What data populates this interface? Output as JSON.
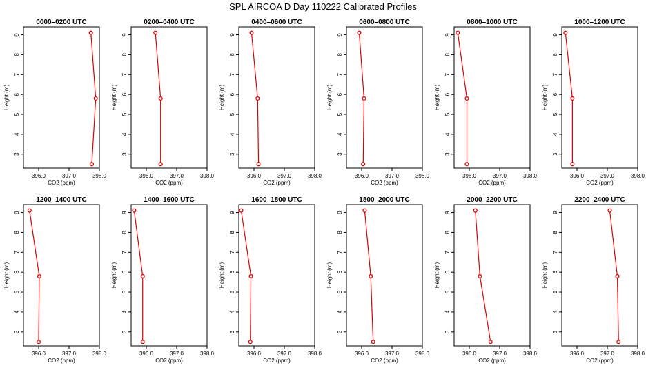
{
  "figure": {
    "title": "SPL AIRCOA D  Day 110222  Calibrated Profiles",
    "colors": {
      "series": "#dd0000",
      "axis": "#000000",
      "background": "#ffffff"
    }
  },
  "chart_data": [
    {
      "type": "line",
      "title": "0000–0200 UTC",
      "xlabel": "CO2 (ppm)",
      "ylabel": "Height (m)",
      "xlim": [
        395.5,
        398.0
      ],
      "ylim": [
        2.3,
        9.4
      ],
      "xticks": [
        "396.0",
        "397.0",
        "398.0"
      ],
      "yticks": [
        "3",
        "4",
        "5",
        "6",
        "7",
        "8",
        "9"
      ],
      "points": [
        {
          "x": 397.72,
          "y": 9.1
        },
        {
          "x": 397.88,
          "y": 5.8
        },
        {
          "x": 397.75,
          "y": 2.5
        }
      ]
    },
    {
      "type": "line",
      "title": "0200–0400 UTC",
      "xlabel": "CO2 (ppm)",
      "ylabel": "Height (m)",
      "xlim": [
        395.5,
        398.0
      ],
      "ylim": [
        2.3,
        9.4
      ],
      "xticks": [
        "396.0",
        "397.0",
        "398.0"
      ],
      "yticks": [
        "3",
        "4",
        "5",
        "6",
        "7",
        "8",
        "9"
      ],
      "points": [
        {
          "x": 396.3,
          "y": 9.1
        },
        {
          "x": 396.47,
          "y": 5.8
        },
        {
          "x": 396.47,
          "y": 2.5
        }
      ]
    },
    {
      "type": "line",
      "title": "0400–0600 UTC",
      "xlabel": "CO2 (ppm)",
      "ylabel": "Height (m)",
      "xlim": [
        395.5,
        398.0
      ],
      "ylim": [
        2.3,
        9.4
      ],
      "xticks": [
        "396.0",
        "397.0",
        "398.0"
      ],
      "yticks": [
        "3",
        "4",
        "5",
        "6",
        "7",
        "8",
        "9"
      ],
      "points": [
        {
          "x": 395.92,
          "y": 9.1
        },
        {
          "x": 396.12,
          "y": 5.8
        },
        {
          "x": 396.15,
          "y": 2.5
        }
      ]
    },
    {
      "type": "line",
      "title": "0600–0800 UTC",
      "xlabel": "CO2 (ppm)",
      "ylabel": "Height (m)",
      "xlim": [
        395.5,
        398.0
      ],
      "ylim": [
        2.3,
        9.4
      ],
      "xticks": [
        "396.0",
        "397.0",
        "398.0"
      ],
      "yticks": [
        "3",
        "4",
        "5",
        "6",
        "7",
        "8",
        "9"
      ],
      "points": [
        {
          "x": 395.92,
          "y": 9.1
        },
        {
          "x": 396.08,
          "y": 5.8
        },
        {
          "x": 396.05,
          "y": 2.5
        }
      ]
    },
    {
      "type": "line",
      "title": "0800–1000 UTC",
      "xlabel": "CO2 (ppm)",
      "ylabel": "Height (m)",
      "xlim": [
        395.5,
        398.0
      ],
      "ylim": [
        2.3,
        9.4
      ],
      "xticks": [
        "396.0",
        "397.0",
        "398.0"
      ],
      "yticks": [
        "3",
        "4",
        "5",
        "6",
        "7",
        "8",
        "9"
      ],
      "points": [
        {
          "x": 395.62,
          "y": 9.1
        },
        {
          "x": 395.92,
          "y": 5.8
        },
        {
          "x": 395.92,
          "y": 2.5
        }
      ]
    },
    {
      "type": "line",
      "title": "1000–1200 UTC",
      "xlabel": "CO2 (ppm)",
      "ylabel": "Height (m)",
      "xlim": [
        395.5,
        398.0
      ],
      "ylim": [
        2.3,
        9.4
      ],
      "xticks": [
        "396.0",
        "397.0",
        "398.0"
      ],
      "yticks": [
        "3",
        "4",
        "5",
        "6",
        "7",
        "8",
        "9"
      ],
      "points": [
        {
          "x": 395.62,
          "y": 9.1
        },
        {
          "x": 395.85,
          "y": 5.8
        },
        {
          "x": 395.85,
          "y": 2.5
        }
      ]
    },
    {
      "type": "line",
      "title": "1200–1400 UTC",
      "xlabel": "CO2 (ppm)",
      "ylabel": "Height (m)",
      "xlim": [
        395.5,
        398.0
      ],
      "ylim": [
        2.3,
        9.4
      ],
      "xticks": [
        "396.0",
        "397.0",
        "398.0"
      ],
      "yticks": [
        "3",
        "4",
        "5",
        "6",
        "7",
        "8",
        "9"
      ],
      "points": [
        {
          "x": 395.7,
          "y": 9.1
        },
        {
          "x": 396.02,
          "y": 5.8
        },
        {
          "x": 396.0,
          "y": 2.5
        }
      ]
    },
    {
      "type": "line",
      "title": "1400–1600 UTC",
      "xlabel": "CO2 (ppm)",
      "ylabel": "Height (m)",
      "xlim": [
        395.5,
        398.0
      ],
      "ylim": [
        2.3,
        9.4
      ],
      "xticks": [
        "396.0",
        "397.0",
        "398.0"
      ],
      "yticks": [
        "3",
        "4",
        "5",
        "6",
        "7",
        "8",
        "9"
      ],
      "points": [
        {
          "x": 395.6,
          "y": 9.1
        },
        {
          "x": 395.88,
          "y": 5.8
        },
        {
          "x": 395.88,
          "y": 2.5
        }
      ]
    },
    {
      "type": "line",
      "title": "1600–1800 UTC",
      "xlabel": "CO2 (ppm)",
      "ylabel": "Height (m)",
      "xlim": [
        395.5,
        398.0
      ],
      "ylim": [
        2.3,
        9.4
      ],
      "xticks": [
        "396.0",
        "397.0",
        "398.0"
      ],
      "yticks": [
        "3",
        "4",
        "5",
        "6",
        "7",
        "8",
        "9"
      ],
      "points": [
        {
          "x": 395.58,
          "y": 9.1
        },
        {
          "x": 395.9,
          "y": 5.8
        },
        {
          "x": 395.88,
          "y": 2.5
        }
      ]
    },
    {
      "type": "line",
      "title": "1800–2000 UTC",
      "xlabel": "CO2 (ppm)",
      "ylabel": "Height (m)",
      "xlim": [
        395.5,
        398.0
      ],
      "ylim": [
        2.3,
        9.4
      ],
      "xticks": [
        "396.0",
        "397.0",
        "398.0"
      ],
      "yticks": [
        "3",
        "4",
        "5",
        "6",
        "7",
        "8",
        "9"
      ],
      "points": [
        {
          "x": 396.1,
          "y": 9.1
        },
        {
          "x": 396.3,
          "y": 5.8
        },
        {
          "x": 396.38,
          "y": 2.5
        }
      ]
    },
    {
      "type": "line",
      "title": "2000–2200 UTC",
      "xlabel": "CO2 (ppm)",
      "ylabel": "Height (m)",
      "xlim": [
        395.5,
        398.0
      ],
      "ylim": [
        2.3,
        9.4
      ],
      "xticks": [
        "396.0",
        "397.0",
        "398.0"
      ],
      "yticks": [
        "3",
        "4",
        "5",
        "6",
        "7",
        "8",
        "9"
      ],
      "points": [
        {
          "x": 396.2,
          "y": 9.1
        },
        {
          "x": 396.35,
          "y": 5.8
        },
        {
          "x": 396.7,
          "y": 2.5
        }
      ]
    },
    {
      "type": "line",
      "title": "2200–2400 UTC",
      "xlabel": "CO2 (ppm)",
      "ylabel": "Height (m)",
      "xlim": [
        395.5,
        398.0
      ],
      "ylim": [
        2.3,
        9.4
      ],
      "xticks": [
        "396.0",
        "397.0",
        "398.0"
      ],
      "yticks": [
        "3",
        "4",
        "5",
        "6",
        "7",
        "8",
        "9"
      ],
      "points": [
        {
          "x": 397.08,
          "y": 9.1
        },
        {
          "x": 397.33,
          "y": 5.8
        },
        {
          "x": 397.37,
          "y": 2.5
        }
      ]
    }
  ]
}
